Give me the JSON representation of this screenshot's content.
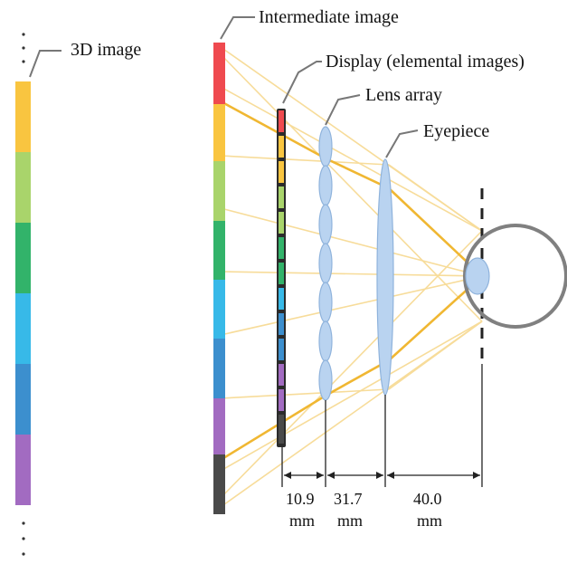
{
  "labels": {
    "image_3d": "3D image",
    "intermediate": "Intermediate image",
    "display": "Display (elemental images)",
    "lens_array": "Lens array",
    "eyepiece": "Eyepiece"
  },
  "dimensions": [
    {
      "value": "10.9",
      "unit": "mm"
    },
    {
      "value": "31.7",
      "unit": "mm"
    },
    {
      "value": "40.0",
      "unit": "mm"
    }
  ],
  "colors": {
    "red": "#ef4a4f",
    "yellow": "#f9c540",
    "light_green": "#a9d46b",
    "green": "#32b36a",
    "cyan": "#37b9e8",
    "blue": "#3c8fce",
    "purple": "#a26bc1",
    "black": "#4a4a4a",
    "ray_light": "#f7dc9a",
    "ray_strong": "#f0b732",
    "lens_fill": "#b9d3f0",
    "lens_stroke": "#8fb3dc",
    "eye": "#808080"
  }
}
